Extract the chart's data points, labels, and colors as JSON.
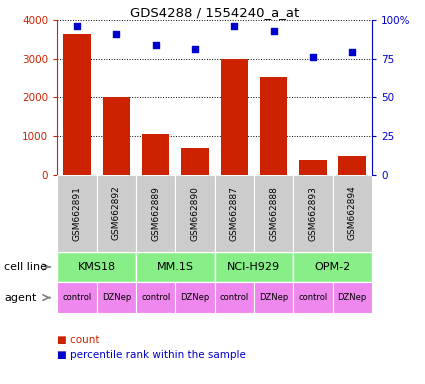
{
  "title": "GDS4288 / 1554240_a_at",
  "samples": [
    "GSM662891",
    "GSM662892",
    "GSM662889",
    "GSM662890",
    "GSM662887",
    "GSM662888",
    "GSM662893",
    "GSM662894"
  ],
  "counts": [
    3650,
    2000,
    1050,
    700,
    3000,
    2520,
    380,
    490
  ],
  "percentiles": [
    96,
    91,
    84,
    81,
    96,
    93,
    76,
    79
  ],
  "cell_lines": [
    {
      "name": "KMS18",
      "span": [
        0,
        2
      ]
    },
    {
      "name": "MM.1S",
      "span": [
        2,
        4
      ]
    },
    {
      "name": "NCI-H929",
      "span": [
        4,
        6
      ]
    },
    {
      "name": "OPM-2",
      "span": [
        6,
        8
      ]
    }
  ],
  "cell_line_color": "#88EE88",
  "agents": [
    "control",
    "DZNep",
    "control",
    "DZNep",
    "control",
    "DZNep",
    "control",
    "DZNep"
  ],
  "agent_color": "#EE88EE",
  "bar_color": "#CC2200",
  "dot_color": "#0000CC",
  "ylim_left": [
    0,
    4000
  ],
  "ylim_right": [
    0,
    100
  ],
  "yticks_left": [
    0,
    1000,
    2000,
    3000,
    4000
  ],
  "ytick_labels_left": [
    "0",
    "1000",
    "2000",
    "3000",
    "4000"
  ],
  "yticks_right": [
    0,
    25,
    50,
    75,
    100
  ],
  "ytick_labels_right": [
    "0",
    "25",
    "50",
    "75",
    "100%"
  ],
  "legend_count_label": "count",
  "legend_pct_label": "percentile rank within the sample",
  "cell_line_label": "cell line",
  "agent_label": "agent",
  "sample_row_color": "#CCCCCC",
  "bg_color": "#FFFFFF"
}
